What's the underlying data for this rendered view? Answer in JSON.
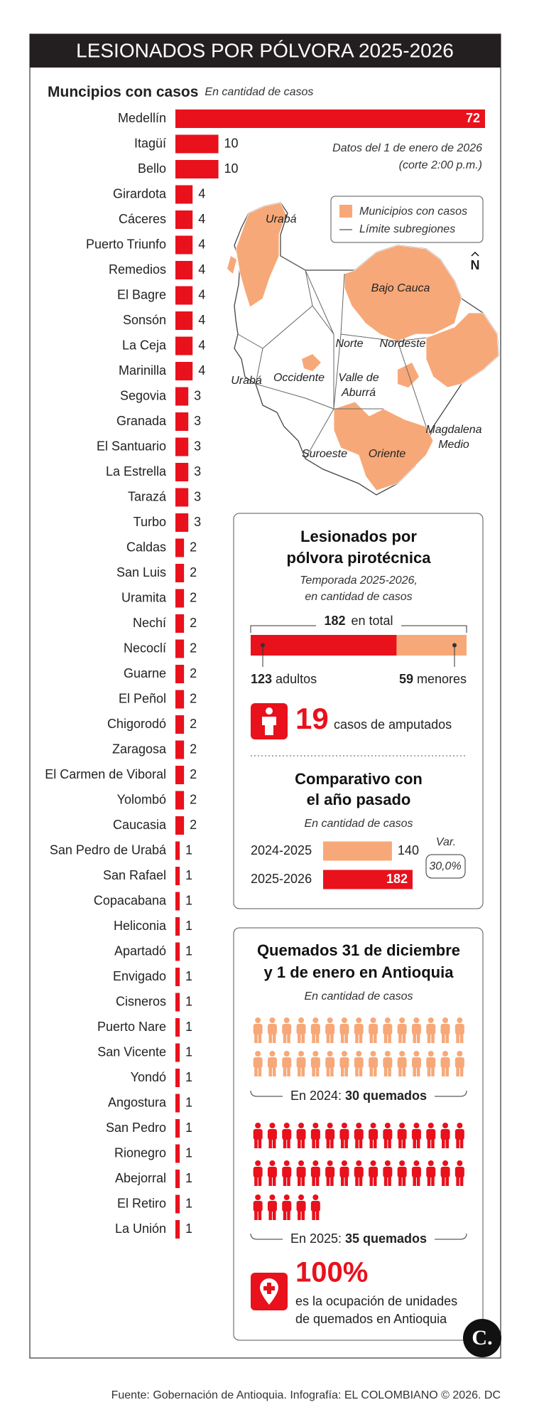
{
  "header": {
    "title": "LESIONADOS POR PÓLVORA 2025-2026"
  },
  "note": [
    "Datos del 1 de enero de 2026",
    "(corte 2:00 p.m.)"
  ],
  "map": {
    "legend": [
      "Municipios con casos",
      "Límite subregiones"
    ],
    "compass": "N",
    "labels": [
      "Urabá",
      "Bajo Cauca",
      "Norte",
      "Nordeste",
      "Occidente",
      "Valle de",
      "Aburrá",
      "Urabá",
      "Magdalena",
      "Medio",
      "Suroeste",
      "Oriente"
    ]
  },
  "chart_data": [
    {
      "type": "bar",
      "title": "Muncipios con casos",
      "subtitle": "En cantidad de casos",
      "color": "#e8111c",
      "categories": [
        "Medellín",
        "Itagüí",
        "Bello",
        "Girardota",
        "Cáceres",
        "Puerto Triunfo",
        "Remedios",
        "El Bagre",
        "Sonsón",
        "La Ceja",
        "Marinilla",
        "Segovia",
        "Granada",
        "El Santuario",
        "La Estrella",
        "Tarazá",
        "Turbo",
        "Caldas",
        "San Luis",
        "Uramita",
        "Nechí",
        "Necoclí",
        "Guarne",
        "El Peñol",
        "Chigorodó",
        "Zaragosa",
        "El Carmen de Viboral",
        "Yolombó",
        "Caucasia",
        "San Pedro de Urabá",
        "San Rafael",
        "Copacabana",
        "Heliconia",
        "Apartadó",
        "Envigado",
        "Cisneros",
        "Puerto Nare",
        "San Vicente",
        "Yondó",
        "Angostura",
        "San Pedro",
        "Rionegro",
        "Abejorral",
        "El Retiro",
        "La Unión"
      ],
      "values": [
        72,
        10,
        10,
        4,
        4,
        4,
        4,
        4,
        4,
        4,
        4,
        3,
        3,
        3,
        3,
        3,
        3,
        2,
        2,
        2,
        2,
        2,
        2,
        2,
        2,
        2,
        2,
        2,
        2,
        1,
        1,
        1,
        1,
        1,
        1,
        1,
        1,
        1,
        1,
        1,
        1,
        1,
        1,
        1,
        1
      ]
    },
    {
      "type": "stacked_bar",
      "title": [
        "Lesionados por",
        "pólvora pirotécnica"
      ],
      "subtitle": [
        "Temporada 2025-2026,",
        "en cantidad de casos"
      ],
      "total": 182,
      "total_label": "en total",
      "series": [
        {
          "name": "adultos",
          "color": "#e8111c",
          "values": [
            123
          ]
        },
        {
          "name": "menores",
          "color": "#f7a878",
          "values": [
            59
          ]
        }
      ]
    },
    {
      "type": "bar",
      "title": [
        "Comparativo con",
        "el año pasado"
      ],
      "subtitle": "En cantidad de casos",
      "categories": [
        "2024-2025",
        "2025-2026"
      ],
      "values": [
        140,
        182
      ],
      "colors": [
        "#f7a878",
        "#e8111c"
      ],
      "annotation": {
        "label": "Var.",
        "value": "30,0%"
      }
    },
    {
      "type": "pictogram",
      "title": [
        "Quemados 31 de diciembre",
        "y 1 de enero en Antioquia"
      ],
      "subtitle": "En cantidad de casos",
      "categories": [
        "En 2024:",
        "En 2025:"
      ],
      "values": [
        30,
        35
      ],
      "value_labels": [
        "30 quemados",
        "35 quemados"
      ],
      "colors": [
        "#f7a878",
        "#e8111c"
      ]
    }
  ],
  "amputees": {
    "value": "19",
    "label": "casos de amputados"
  },
  "occupancy": {
    "value": "100%",
    "lines": [
      "es la ocupación de unidades",
      "de quemados en Antioquia"
    ]
  },
  "logo": "C.",
  "source": "Fuente: Gobernación de Antioquia. Infografía: EL COLOMBIANO © 2026. DC"
}
